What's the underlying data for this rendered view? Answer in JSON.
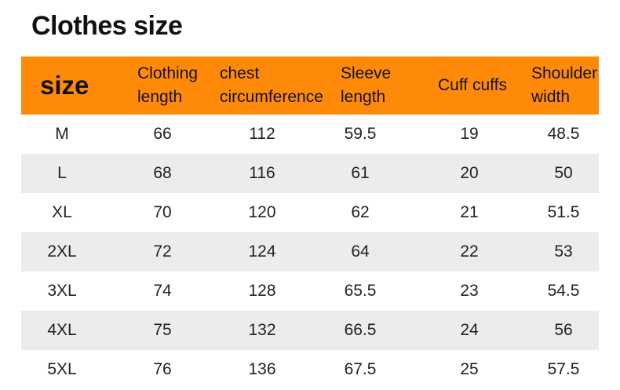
{
  "title": "Clothes size",
  "headers": {
    "size": "size",
    "length": [
      "Clothing",
      "length"
    ],
    "chest": [
      "chest",
      "circumference"
    ],
    "sleeve": [
      "Sleeve",
      "length"
    ],
    "cuff": "Cuff cuffs",
    "shoulder": [
      "Shoulder",
      "width"
    ]
  },
  "rows": [
    {
      "size": "M",
      "length": "66",
      "chest": "112",
      "sleeve": "59.5",
      "cuff": "19",
      "shoulder": "48.5"
    },
    {
      "size": "L",
      "length": "68",
      "chest": "116",
      "sleeve": "61",
      "cuff": "20",
      "shoulder": "50"
    },
    {
      "size": "XL",
      "length": "70",
      "chest": "120",
      "sleeve": "62",
      "cuff": "21",
      "shoulder": "51.5"
    },
    {
      "size": "2XL",
      "length": "72",
      "chest": "124",
      "sleeve": "64",
      "cuff": "22",
      "shoulder": "53"
    },
    {
      "size": "3XL",
      "length": "74",
      "chest": "128",
      "sleeve": "65.5",
      "cuff": "23",
      "shoulder": "54.5"
    },
    {
      "size": "4XL",
      "length": "75",
      "chest": "132",
      "sleeve": "66.5",
      "cuff": "24",
      "shoulder": "56"
    },
    {
      "size": "5XL",
      "length": "76",
      "chest": "136",
      "sleeve": "67.5",
      "cuff": "25",
      "shoulder": "57.5"
    }
  ],
  "colors": {
    "header_bg": "#ff8a0a",
    "shaded_row": "#ececec"
  }
}
